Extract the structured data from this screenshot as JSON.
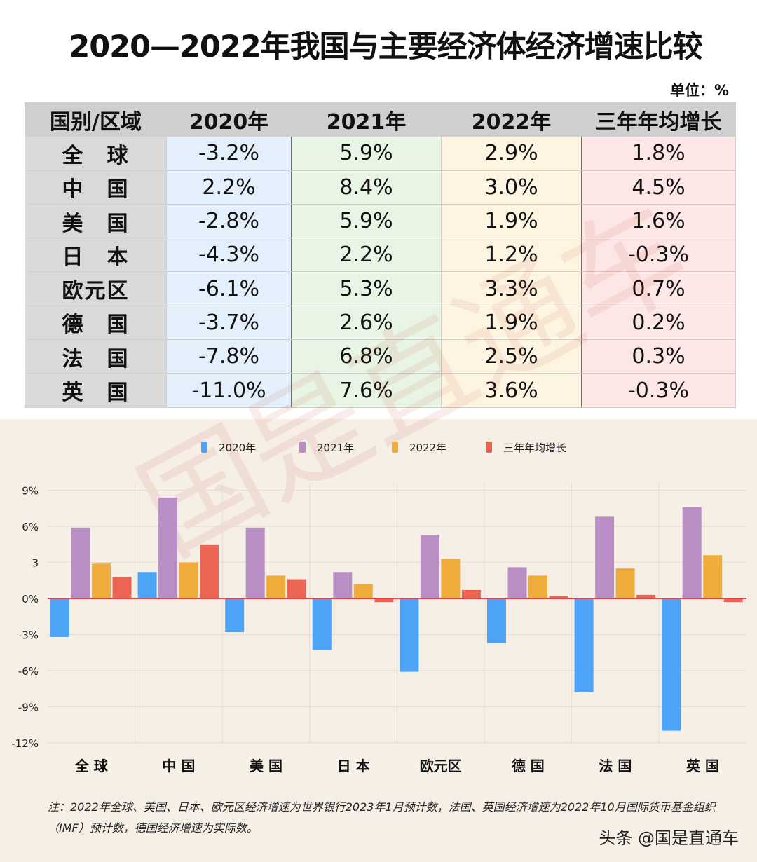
{
  "title": "2020—2022年我国与主要经济体经济增速比较",
  "unit": "单位：%",
  "table": {
    "headers": [
      "国别/区域",
      "2020年",
      "2021年",
      "2022年",
      "三年年均增长"
    ],
    "rows": [
      [
        "全　球",
        "-3.2%",
        "5.9%",
        "2.9%",
        "1.8%"
      ],
      [
        "中　国",
        "2.2%",
        "8.4%",
        "3.0%",
        "4.5%"
      ],
      [
        "美　国",
        "-2.8%",
        "5.9%",
        "1.9%",
        "1.6%"
      ],
      [
        "日　本",
        "-4.3%",
        "2.2%",
        "1.2%",
        "-0.3%"
      ],
      [
        "欧元区",
        "-6.1%",
        "5.3%",
        "3.3%",
        "0.7%"
      ],
      [
        "德　国",
        "-3.7%",
        "2.6%",
        "1.9%",
        "0.2%"
      ],
      [
        "法　国",
        "-7.8%",
        "6.8%",
        "2.5%",
        "0.3%"
      ],
      [
        "英　国",
        "-11.0%",
        "7.6%",
        "3.6%",
        "-0.3%"
      ]
    ]
  },
  "chart_data": {
    "type": "bar",
    "categories": [
      "全 球",
      "中 国",
      "美 国",
      "日 本",
      "欧元区",
      "德 国",
      "法 国",
      "英 国"
    ],
    "series": [
      {
        "name": "2020年",
        "color": "#4da3f5",
        "values": [
          -3.2,
          2.2,
          -2.8,
          -4.3,
          -6.1,
          -3.7,
          -7.8,
          -11.0
        ]
      },
      {
        "name": "2021年",
        "color": "#b88ec4",
        "values": [
          5.9,
          8.4,
          5.9,
          2.2,
          5.3,
          2.6,
          6.8,
          7.6
        ]
      },
      {
        "name": "2022年",
        "color": "#f0ac3a",
        "values": [
          2.9,
          3.0,
          1.9,
          1.2,
          3.3,
          1.9,
          2.5,
          3.6
        ]
      },
      {
        "name": "三年年均增长",
        "color": "#ec6553",
        "values": [
          1.8,
          4.5,
          1.6,
          -0.3,
          0.7,
          0.2,
          0.3,
          -0.3
        ]
      }
    ],
    "yticks": [
      9,
      6,
      3,
      0,
      -3,
      -6,
      -9,
      -12
    ],
    "ytick_labels": [
      "9%",
      "6%",
      "3",
      "0%",
      "-3%",
      "-6%",
      "-9%",
      "-12%"
    ],
    "ylim": [
      -12,
      9
    ],
    "legend": "top",
    "zero_line_color": "#e03030"
  },
  "note": "注：2022年全球、美国、日本、欧元区经济增速为世界银行2023年1月预计数，法国、英国经济增速为2022年10月国际货币基金组织（IMF）预计数，德国经济增速为实际数。",
  "credit": "头条 @国是直通车",
  "watermark": "国是直通车"
}
